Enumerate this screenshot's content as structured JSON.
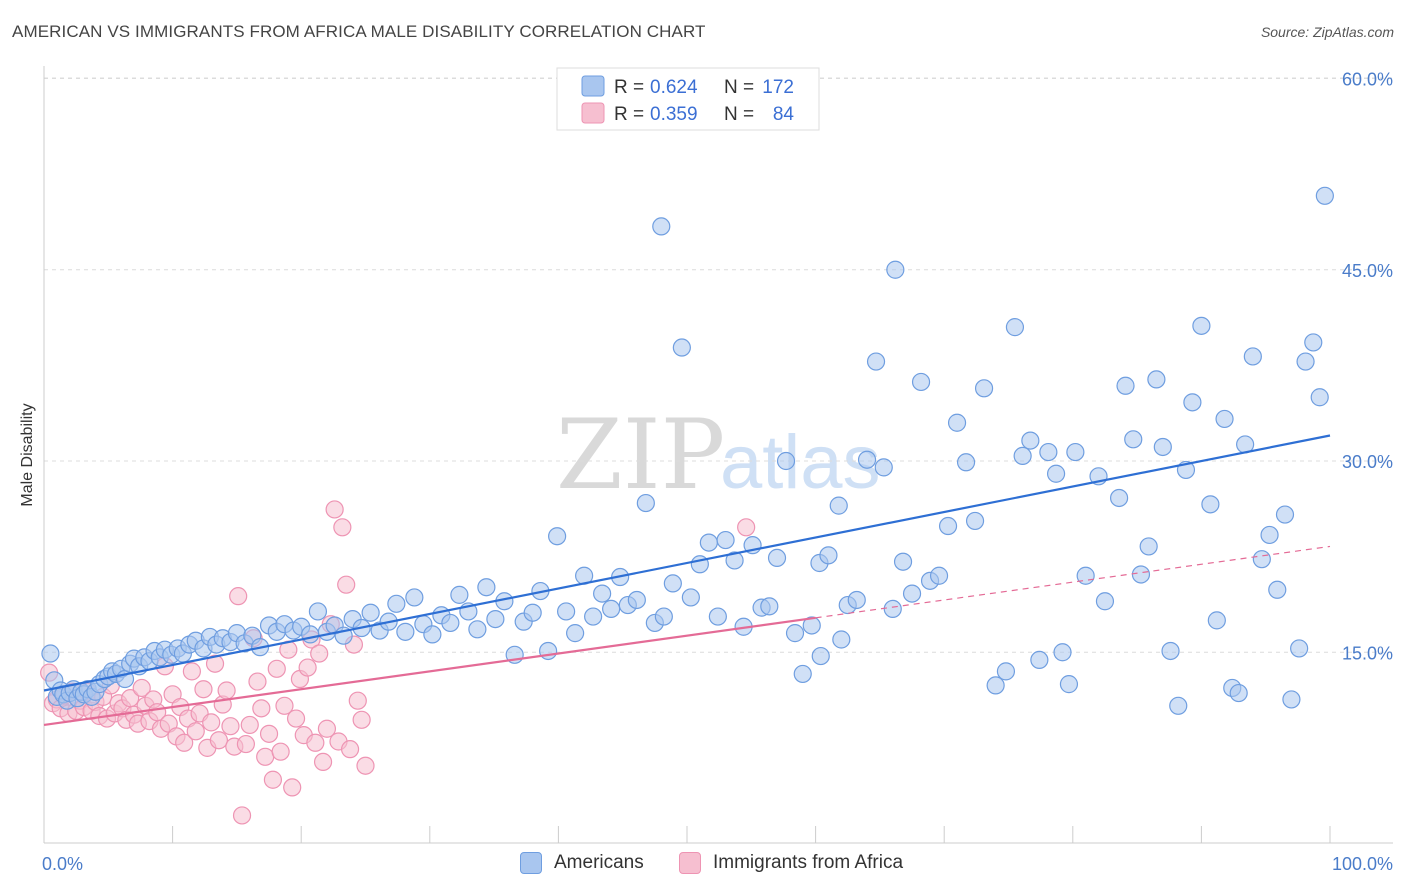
{
  "header": {
    "title": "AMERICAN VS IMMIGRANTS FROM AFRICA MALE DISABILITY CORRELATION CHART",
    "source": "Source: ZipAtlas.com"
  },
  "watermark": {
    "zip": "ZIP",
    "atlas": "atlas"
  },
  "colors": {
    "blue_fill": "#a9c6ef",
    "blue_stroke": "#6f9ee0",
    "blue_line": "#2e6fd4",
    "pink_fill": "#f6bfd0",
    "pink_stroke": "#ee94b3",
    "pink_line": "#e46b96",
    "tick_text": "#4a7cc9"
  },
  "legend": {
    "rows": [
      {
        "r_label": "R =",
        "r_value": "0.624",
        "n_label": "N =",
        "n_value": "172"
      },
      {
        "r_label": "R =",
        "r_value": "0.359",
        "n_label": "N =",
        "n_value": "84"
      }
    ]
  },
  "bottom_legend": {
    "americans": "Americans",
    "immigrants": "Immigrants from Africa"
  },
  "chart_data": {
    "type": "scatter",
    "title": "AMERICAN VS IMMIGRANTS FROM AFRICA MALE DISABILITY CORRELATION CHART",
    "xlabel": "",
    "ylabel": "Male Disability",
    "xlim": [
      0,
      100
    ],
    "ylim": [
      0,
      60
    ],
    "x_tick_labels": [
      "0.0%",
      "100.0%"
    ],
    "y_ticks": [
      15,
      30,
      45,
      60
    ],
    "y_tick_labels": [
      "15.0%",
      "30.0%",
      "45.0%",
      "60.0%"
    ],
    "grid": "horizontal dashed",
    "legend_position": "top-center",
    "series": [
      {
        "name": "Americans",
        "color": "#a9c6ef",
        "r": 0.624,
        "n": 172,
        "trend": {
          "x": [
            0,
            100
          ],
          "y": [
            12.0,
            32.0
          ]
        },
        "points": [
          [
            0.5,
            14.9
          ],
          [
            0.8,
            12.8
          ],
          [
            1.0,
            11.5
          ],
          [
            1.3,
            12.0
          ],
          [
            1.5,
            11.7
          ],
          [
            1.8,
            11.2
          ],
          [
            2.0,
            11.8
          ],
          [
            2.3,
            12.1
          ],
          [
            2.6,
            11.4
          ],
          [
            2.9,
            11.9
          ],
          [
            3.1,
            11.7
          ],
          [
            3.4,
            12.1
          ],
          [
            3.7,
            11.5
          ],
          [
            4.0,
            11.9
          ],
          [
            4.3,
            12.5
          ],
          [
            4.7,
            12.9
          ],
          [
            5.0,
            13.1
          ],
          [
            5.3,
            13.5
          ],
          [
            5.6,
            13.3
          ],
          [
            6.0,
            13.7
          ],
          [
            6.3,
            12.9
          ],
          [
            6.7,
            14.1
          ],
          [
            7.0,
            14.5
          ],
          [
            7.4,
            13.9
          ],
          [
            7.8,
            14.6
          ],
          [
            8.2,
            14.3
          ],
          [
            8.6,
            15.1
          ],
          [
            9.0,
            14.6
          ],
          [
            9.4,
            15.2
          ],
          [
            9.9,
            14.8
          ],
          [
            10.4,
            15.3
          ],
          [
            10.8,
            14.9
          ],
          [
            11.3,
            15.6
          ],
          [
            11.8,
            15.9
          ],
          [
            12.4,
            15.3
          ],
          [
            12.9,
            16.2
          ],
          [
            13.4,
            15.6
          ],
          [
            13.9,
            16.1
          ],
          [
            14.5,
            15.8
          ],
          [
            15.0,
            16.5
          ],
          [
            15.6,
            15.7
          ],
          [
            16.2,
            16.3
          ],
          [
            16.8,
            15.4
          ],
          [
            17.5,
            17.1
          ],
          [
            18.1,
            16.6
          ],
          [
            18.7,
            17.2
          ],
          [
            19.4,
            16.7
          ],
          [
            20.0,
            17.0
          ],
          [
            20.7,
            16.4
          ],
          [
            21.3,
            18.2
          ],
          [
            22.0,
            16.6
          ],
          [
            22.6,
            17.1
          ],
          [
            23.3,
            16.3
          ],
          [
            24.0,
            17.6
          ],
          [
            24.7,
            16.9
          ],
          [
            25.4,
            18.1
          ],
          [
            26.1,
            16.7
          ],
          [
            26.8,
            17.4
          ],
          [
            27.4,
            18.8
          ],
          [
            28.1,
            16.6
          ],
          [
            28.8,
            19.3
          ],
          [
            29.5,
            17.2
          ],
          [
            30.2,
            16.4
          ],
          [
            30.9,
            17.9
          ],
          [
            31.6,
            17.3
          ],
          [
            32.3,
            19.5
          ],
          [
            33.0,
            18.2
          ],
          [
            33.7,
            16.8
          ],
          [
            34.4,
            20.1
          ],
          [
            35.1,
            17.6
          ],
          [
            35.8,
            19.0
          ],
          [
            36.6,
            14.8
          ],
          [
            37.3,
            17.4
          ],
          [
            38.0,
            18.1
          ],
          [
            38.6,
            19.8
          ],
          [
            39.2,
            15.1
          ],
          [
            39.9,
            24.1
          ],
          [
            40.6,
            18.2
          ],
          [
            41.3,
            16.5
          ],
          [
            42.0,
            21.0
          ],
          [
            42.7,
            17.8
          ],
          [
            43.4,
            19.6
          ],
          [
            44.1,
            18.4
          ],
          [
            44.8,
            20.9
          ],
          [
            45.4,
            18.7
          ],
          [
            46.1,
            19.1
          ],
          [
            46.8,
            26.7
          ],
          [
            47.5,
            17.3
          ],
          [
            48.2,
            17.8
          ],
          [
            48.9,
            20.4
          ],
          [
            49.6,
            38.9
          ],
          [
            50.3,
            19.3
          ],
          [
            51.0,
            21.9
          ],
          [
            51.7,
            23.6
          ],
          [
            52.4,
            17.8
          ],
          [
            53.0,
            23.8
          ],
          [
            53.7,
            22.2
          ],
          [
            54.4,
            17.0
          ],
          [
            55.1,
            23.4
          ],
          [
            55.8,
            18.5
          ],
          [
            56.4,
            18.6
          ],
          [
            57.0,
            22.4
          ],
          [
            57.7,
            30.0
          ],
          [
            58.4,
            16.5
          ],
          [
            59.0,
            13.3
          ],
          [
            59.7,
            17.1
          ],
          [
            60.3,
            22.0
          ],
          [
            61.0,
            22.6
          ],
          [
            61.8,
            26.5
          ],
          [
            62.5,
            18.7
          ],
          [
            63.2,
            19.1
          ],
          [
            64.0,
            30.1
          ],
          [
            64.7,
            37.8
          ],
          [
            65.3,
            29.5
          ],
          [
            66.0,
            18.4
          ],
          [
            66.8,
            22.1
          ],
          [
            67.5,
            19.6
          ],
          [
            68.2,
            36.2
          ],
          [
            68.9,
            20.6
          ],
          [
            69.6,
            21.0
          ],
          [
            70.3,
            24.9
          ],
          [
            71.0,
            33.0
          ],
          [
            71.7,
            29.9
          ],
          [
            72.4,
            25.3
          ],
          [
            73.1,
            35.7
          ],
          [
            74.0,
            12.4
          ],
          [
            74.8,
            13.5
          ],
          [
            75.5,
            40.5
          ],
          [
            76.1,
            30.4
          ],
          [
            76.7,
            31.6
          ],
          [
            77.4,
            14.4
          ],
          [
            78.1,
            30.7
          ],
          [
            78.7,
            29.0
          ],
          [
            79.2,
            15.0
          ],
          [
            79.7,
            12.5
          ],
          [
            80.2,
            30.7
          ],
          [
            81.0,
            21.0
          ],
          [
            82.0,
            28.8
          ],
          [
            82.5,
            19.0
          ],
          [
            83.6,
            27.1
          ],
          [
            84.1,
            35.9
          ],
          [
            84.7,
            31.7
          ],
          [
            85.3,
            21.1
          ],
          [
            85.9,
            23.3
          ],
          [
            86.5,
            36.4
          ],
          [
            87.0,
            31.1
          ],
          [
            87.6,
            15.1
          ],
          [
            88.2,
            10.8
          ],
          [
            88.8,
            29.3
          ],
          [
            89.3,
            34.6
          ],
          [
            90.0,
            40.6
          ],
          [
            90.7,
            26.6
          ],
          [
            91.2,
            17.5
          ],
          [
            91.8,
            33.3
          ],
          [
            92.4,
            12.2
          ],
          [
            92.9,
            11.8
          ],
          [
            93.4,
            31.3
          ],
          [
            94.0,
            38.2
          ],
          [
            94.7,
            22.3
          ],
          [
            95.3,
            24.2
          ],
          [
            95.9,
            19.9
          ],
          [
            96.5,
            25.8
          ],
          [
            97.0,
            11.3
          ],
          [
            97.6,
            15.3
          ],
          [
            98.1,
            37.8
          ],
          [
            98.7,
            39.3
          ],
          [
            99.2,
            35.0
          ],
          [
            99.6,
            50.8
          ],
          [
            60.4,
            14.7
          ],
          [
            62.0,
            16.0
          ],
          [
            48.0,
            48.4
          ],
          [
            66.2,
            45.0
          ]
        ]
      },
      {
        "name": "Immigrants from Africa",
        "color": "#f6bfd0",
        "r": 0.359,
        "n": 84,
        "trend": {
          "x": [
            0,
            60
          ],
          "y": [
            9.3,
            17.7
          ]
        },
        "trend_dashed": {
          "x": [
            60,
            100
          ],
          "y": [
            17.7,
            23.3
          ]
        },
        "points": [
          [
            0.4,
            13.4
          ],
          [
            0.7,
            11.0
          ],
          [
            1.0,
            11.3
          ],
          [
            1.3,
            10.6
          ],
          [
            1.6,
            11.6
          ],
          [
            1.9,
            10.2
          ],
          [
            2.2,
            11.9
          ],
          [
            2.5,
            10.4
          ],
          [
            2.8,
            11.2
          ],
          [
            3.1,
            10.7
          ],
          [
            3.4,
            11.9
          ],
          [
            3.7,
            10.4
          ],
          [
            4.0,
            11.1
          ],
          [
            4.3,
            10.0
          ],
          [
            4.6,
            11.5
          ],
          [
            4.9,
            9.8
          ],
          [
            5.2,
            12.4
          ],
          [
            5.5,
            10.2
          ],
          [
            5.8,
            11.0
          ],
          [
            6.1,
            10.6
          ],
          [
            6.4,
            9.7
          ],
          [
            6.7,
            11.4
          ],
          [
            7.0,
            10.1
          ],
          [
            7.3,
            9.4
          ],
          [
            7.6,
            12.2
          ],
          [
            7.9,
            10.8
          ],
          [
            8.2,
            9.6
          ],
          [
            8.5,
            11.3
          ],
          [
            8.8,
            10.3
          ],
          [
            9.1,
            9.0
          ],
          [
            9.4,
            13.9
          ],
          [
            9.7,
            9.4
          ],
          [
            10.0,
            11.7
          ],
          [
            10.3,
            8.4
          ],
          [
            10.6,
            10.7
          ],
          [
            10.9,
            7.9
          ],
          [
            11.2,
            9.8
          ],
          [
            11.5,
            13.5
          ],
          [
            11.8,
            8.8
          ],
          [
            12.1,
            10.2
          ],
          [
            12.4,
            12.1
          ],
          [
            12.7,
            7.5
          ],
          [
            13.0,
            9.5
          ],
          [
            13.3,
            14.1
          ],
          [
            13.6,
            8.1
          ],
          [
            13.9,
            10.9
          ],
          [
            14.2,
            12.0
          ],
          [
            14.5,
            9.2
          ],
          [
            14.8,
            7.6
          ],
          [
            15.1,
            19.4
          ],
          [
            15.4,
            2.2
          ],
          [
            15.7,
            7.8
          ],
          [
            16.0,
            9.3
          ],
          [
            16.3,
            16.1
          ],
          [
            16.6,
            12.7
          ],
          [
            16.9,
            10.6
          ],
          [
            17.2,
            6.8
          ],
          [
            17.5,
            8.6
          ],
          [
            17.8,
            5.0
          ],
          [
            18.1,
            13.7
          ],
          [
            18.4,
            7.2
          ],
          [
            18.7,
            10.8
          ],
          [
            19.0,
            15.2
          ],
          [
            19.3,
            4.4
          ],
          [
            19.6,
            9.8
          ],
          [
            19.9,
            12.9
          ],
          [
            20.2,
            8.5
          ],
          [
            20.5,
            13.8
          ],
          [
            20.8,
            16.0
          ],
          [
            21.1,
            7.9
          ],
          [
            21.4,
            14.9
          ],
          [
            21.7,
            6.4
          ],
          [
            22.0,
            9.0
          ],
          [
            22.3,
            17.2
          ],
          [
            22.6,
            26.2
          ],
          [
            22.9,
            8.0
          ],
          [
            23.2,
            24.8
          ],
          [
            23.5,
            20.3
          ],
          [
            23.8,
            7.4
          ],
          [
            24.1,
            15.6
          ],
          [
            24.4,
            11.2
          ],
          [
            24.7,
            9.7
          ],
          [
            25.0,
            6.1
          ],
          [
            54.6,
            24.8
          ]
        ]
      }
    ]
  }
}
